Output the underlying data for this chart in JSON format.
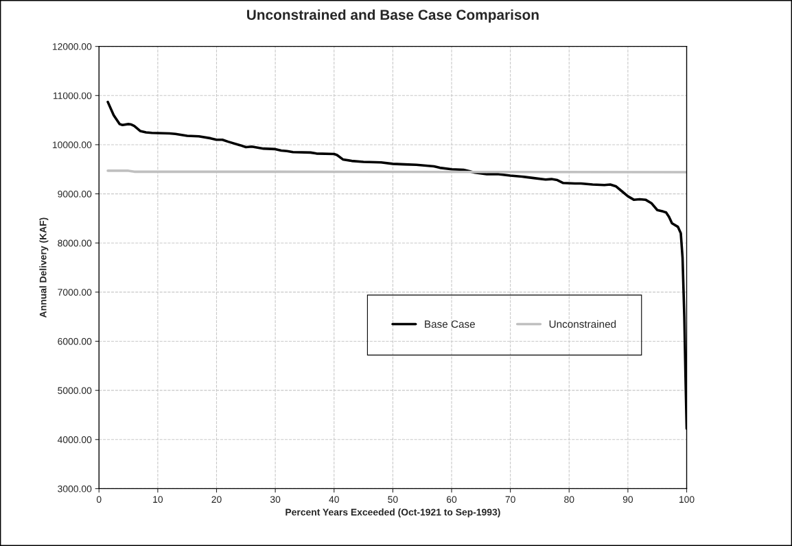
{
  "chart_data": {
    "type": "line",
    "title": "Unconstrained and Base Case Comparison",
    "xlabel": "Percent Years Exceeded (Oct-1921 to Sep-1993)",
    "ylabel": "Annual Delivery (KAF)",
    "series": [
      {
        "name": "Base Case",
        "color": "#000000",
        "x": [
          1.5,
          2.5,
          3.5,
          4,
          5,
          5.5,
          6,
          7,
          8,
          9,
          12,
          13,
          15,
          17,
          19,
          20,
          21,
          22,
          24,
          25,
          26,
          27,
          28,
          30,
          31,
          32,
          33,
          36,
          37,
          40,
          40.5,
          41.5,
          43,
          45,
          48,
          50,
          52,
          54,
          55,
          57,
          58,
          60,
          62,
          63,
          64,
          66,
          68,
          70,
          72,
          74,
          76,
          77,
          78,
          79,
          81,
          82,
          84,
          86,
          87,
          88,
          89,
          90,
          91,
          92,
          93,
          94,
          95,
          96,
          96.5,
          97,
          97.5,
          98.5,
          99,
          99.3,
          99.6,
          99.8,
          100
        ],
        "values": [
          10870,
          10600,
          10420,
          10400,
          10420,
          10410,
          10380,
          10280,
          10250,
          10240,
          10230,
          10220,
          10180,
          10170,
          10130,
          10100,
          10100,
          10060,
          9990,
          9950,
          9960,
          9940,
          9920,
          9910,
          9880,
          9870,
          9850,
          9840,
          9820,
          9810,
          9790,
          9700,
          9670,
          9650,
          9640,
          9610,
          9600,
          9590,
          9580,
          9560,
          9530,
          9500,
          9490,
          9460,
          9430,
          9400,
          9400,
          9370,
          9350,
          9320,
          9290,
          9300,
          9280,
          9220,
          9210,
          9210,
          9190,
          9180,
          9190,
          9150,
          9050,
          8950,
          8880,
          8890,
          8880,
          8810,
          8670,
          8640,
          8620,
          8530,
          8400,
          8330,
          8200,
          7700,
          6500,
          5300,
          4220
        ]
      },
      {
        "name": "Unconstrained",
        "color": "#c0c0c0",
        "x": [
          1.5,
          5,
          6,
          30,
          100
        ],
        "values": [
          9470,
          9470,
          9450,
          9450,
          9440
        ]
      }
    ],
    "xlim": [
      0,
      100
    ],
    "xticks": [
      0,
      10,
      20,
      30,
      40,
      50,
      60,
      70,
      80,
      90,
      100
    ],
    "ylim": [
      3000,
      12000
    ],
    "yticks": [
      {
        "value": 3000,
        "label": "3000.00"
      },
      {
        "value": 4000,
        "label": "4000.00"
      },
      {
        "value": 5000,
        "label": "5000.00"
      },
      {
        "value": 6000,
        "label": "6000.00"
      },
      {
        "value": 7000,
        "label": "7000.00"
      },
      {
        "value": 8000,
        "label": "8000.00"
      },
      {
        "value": 9000,
        "label": "9000.00"
      },
      {
        "value": 10000,
        "label": "10000.00"
      },
      {
        "value": 11000,
        "label": "11000.00"
      },
      {
        "value": 12000,
        "label": "12000.00"
      }
    ],
    "grid": true,
    "legend": "center right",
    "marker": "none",
    "line_style": "solid"
  }
}
